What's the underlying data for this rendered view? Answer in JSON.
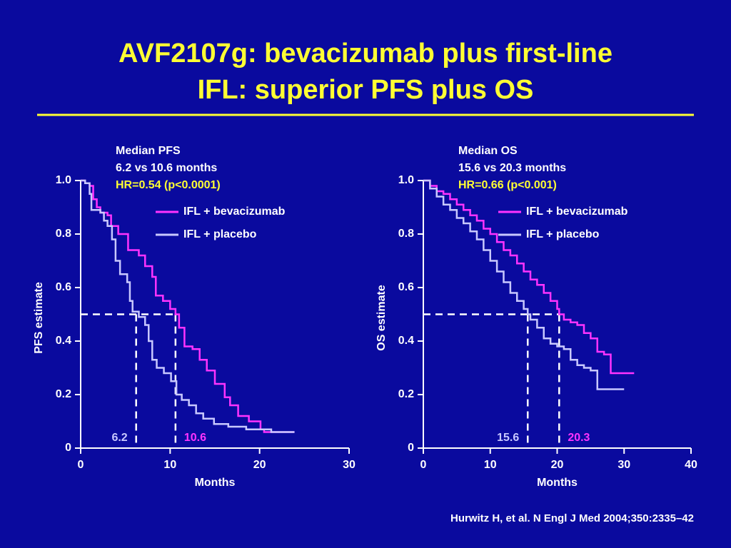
{
  "title_lines": [
    "AVF2107g: bevacizumab plus first-line",
    "IFL: superior PFS plus OS"
  ],
  "source": "Hurwitz H, et al. N Engl J Med 2004;350:2335–42",
  "chart_data": [
    {
      "type": "step",
      "annotations": [
        "Median PFS",
        "6.2 vs 10.6 months",
        "HR=0.54 (p<0.0001)"
      ],
      "annotation_colors": [
        "#ffffff",
        "#ffffff",
        "#ffff33"
      ],
      "y_label": "PFS estimate",
      "x_label": "Months",
      "xlim": [
        0,
        30
      ],
      "xticks": [
        0,
        10,
        20,
        30
      ],
      "ylim": [
        0,
        1
      ],
      "yticks": [
        0,
        0.2,
        0.4,
        0.6,
        0.8,
        {
          "value": 1,
          "label": "1.0"
        }
      ],
      "median_level": 0.5,
      "legend": "upper right",
      "series": [
        {
          "name": "IFL + bevacizumab",
          "color": "#ff33ff",
          "median": 10.6,
          "x": [
            0,
            0.5,
            1,
            1.4,
            1.8,
            2.2,
            3,
            3.4,
            4.2,
            5.3,
            6.5,
            7.2,
            8,
            8.4,
            9.2,
            10,
            10.6,
            11,
            11.6,
            12.5,
            13.3,
            14.1,
            15,
            16.1,
            16.7,
            17.6,
            18.8,
            20.1,
            20.5,
            23.9
          ],
          "values": [
            1,
            0.99,
            0.98,
            0.93,
            0.9,
            0.88,
            0.87,
            0.83,
            0.8,
            0.74,
            0.72,
            0.68,
            0.64,
            0.57,
            0.55,
            0.52,
            0.5,
            0.45,
            0.38,
            0.37,
            0.33,
            0.29,
            0.24,
            0.19,
            0.16,
            0.12,
            0.1,
            0.07,
            0.06,
            0.06
          ]
        },
        {
          "name": "IFL + placebo",
          "color": "#c8c8ff",
          "median": 6.2,
          "x": [
            0,
            0.5,
            1,
            1.2,
            2.2,
            2.6,
            3,
            3.5,
            3.9,
            4.4,
            5.2,
            5.5,
            5.8,
            6.5,
            7.2,
            7.6,
            8,
            8.5,
            9.3,
            10.1,
            10.7,
            11.3,
            12.1,
            12.9,
            13.7,
            14.9,
            16.5,
            18.5,
            21.3,
            23.9
          ],
          "values": [
            1,
            0.99,
            0.95,
            0.89,
            0.88,
            0.85,
            0.83,
            0.78,
            0.7,
            0.65,
            0.62,
            0.55,
            0.51,
            0.49,
            0.46,
            0.4,
            0.33,
            0.3,
            0.28,
            0.25,
            0.2,
            0.18,
            0.16,
            0.13,
            0.11,
            0.09,
            0.08,
            0.07,
            0.06,
            0.06
          ]
        }
      ]
    },
    {
      "type": "step",
      "annotations": [
        "Median OS",
        "15.6 vs 20.3 months",
        "HR=0.66 (p<0.001)"
      ],
      "annotation_colors": [
        "#ffffff",
        "#ffffff",
        "#ffff33"
      ],
      "y_label": "OS estimate",
      "x_label": "Months",
      "xlim": [
        0,
        40
      ],
      "xticks": [
        0,
        10,
        20,
        30,
        40
      ],
      "ylim": [
        0,
        1
      ],
      "yticks": [
        0,
        0.2,
        0.4,
        0.6,
        0.8,
        {
          "value": 1,
          "label": "1.0"
        }
      ],
      "median_level": 0.5,
      "legend": "upper right",
      "series": [
        {
          "name": "IFL + bevacizumab",
          "color": "#ff33ff",
          "median": 20.3,
          "x": [
            0,
            1,
            2,
            3,
            4,
            5,
            6,
            7,
            8,
            9,
            10,
            11,
            12,
            13,
            14,
            15,
            16,
            17,
            18,
            19,
            20,
            20.3,
            21,
            22,
            23,
            24,
            25,
            26,
            27,
            28,
            31.5
          ],
          "values": [
            1,
            0.98,
            0.96,
            0.95,
            0.93,
            0.91,
            0.89,
            0.87,
            0.85,
            0.82,
            0.8,
            0.77,
            0.74,
            0.72,
            0.69,
            0.66,
            0.63,
            0.61,
            0.58,
            0.55,
            0.52,
            0.5,
            0.48,
            0.47,
            0.46,
            0.43,
            0.41,
            0.36,
            0.35,
            0.28,
            0.28
          ]
        },
        {
          "name": "IFL + placebo",
          "color": "#c8c8ff",
          "median": 15.6,
          "x": [
            0,
            1,
            2,
            3,
            4,
            5,
            6,
            7,
            8,
            9,
            10,
            11,
            12,
            13,
            14,
            15,
            15.6,
            16,
            17,
            18,
            19,
            20,
            21,
            22,
            23,
            24,
            25,
            26,
            30
          ],
          "values": [
            1,
            0.97,
            0.94,
            0.91,
            0.89,
            0.86,
            0.84,
            0.81,
            0.78,
            0.74,
            0.7,
            0.66,
            0.62,
            0.58,
            0.55,
            0.52,
            0.5,
            0.48,
            0.45,
            0.41,
            0.39,
            0.38,
            0.37,
            0.33,
            0.31,
            0.3,
            0.29,
            0.22,
            0.22
          ]
        }
      ]
    }
  ]
}
